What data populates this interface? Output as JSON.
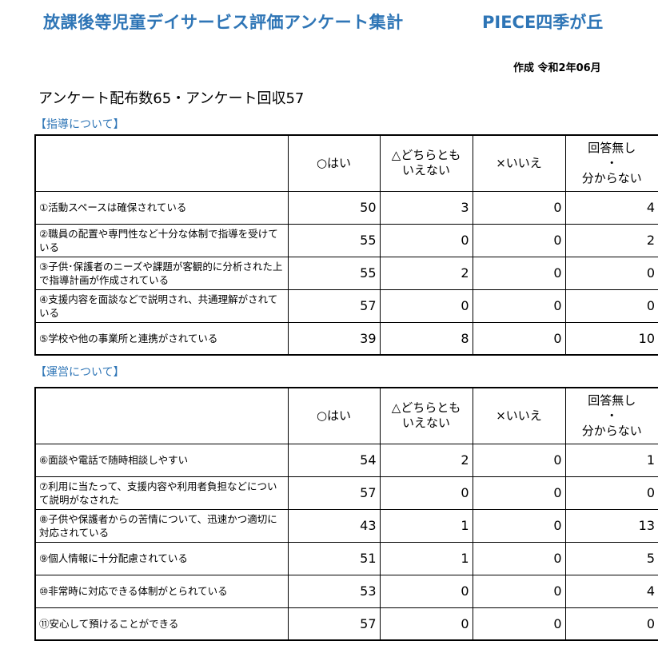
{
  "header": {
    "title": "放課後等児童デイサービス評価アンケート集計",
    "organization": "PIECE四季が丘",
    "created": "作成 令和2年06月"
  },
  "summary": "アンケート配布数65・アンケート回収57",
  "columns": [
    "○はい",
    "△どちらともいえない",
    "×いいえ",
    "回答無し・分からない"
  ],
  "sections": [
    {
      "label": "【指導について】",
      "rows": [
        {
          "q": "①活動スペースは確保されている",
          "v": [
            50,
            3,
            0,
            4
          ]
        },
        {
          "q": "②職員の配置や専門性など十分な体制で指導を受けている",
          "v": [
            55,
            0,
            0,
            2
          ]
        },
        {
          "q": "③子供･保護者のニーズや課題が客観的に分析された上で指導計画が作成されている",
          "v": [
            55,
            2,
            0,
            0
          ]
        },
        {
          "q": "④支援内容を面談などで説明され、共通理解がされている",
          "v": [
            57,
            0,
            0,
            0
          ]
        },
        {
          "q": "⑤学校や他の事業所と連携がされている",
          "v": [
            39,
            8,
            0,
            10
          ]
        }
      ]
    },
    {
      "label": "【運営について】",
      "rows": [
        {
          "q": "⑥面談や電話で随時相談しやすい",
          "v": [
            54,
            2,
            0,
            1
          ]
        },
        {
          "q": "⑦利用に当たって、支援内容や利用者負担などについて説明がなされた",
          "v": [
            57,
            0,
            0,
            0
          ]
        },
        {
          "q": "⑧子供や保護者からの苦情について、迅速かつ適切に対応されている",
          "v": [
            43,
            1,
            0,
            13
          ]
        },
        {
          "q": "⑨個人情報に十分配慮されている",
          "v": [
            51,
            1,
            0,
            5
          ]
        },
        {
          "q": "⑩非常時に対応できる体制がとられている",
          "v": [
            53,
            0,
            0,
            4
          ]
        },
        {
          "q": "⑪安心して預けることができる",
          "v": [
            57,
            0,
            0,
            0
          ]
        }
      ]
    }
  ]
}
